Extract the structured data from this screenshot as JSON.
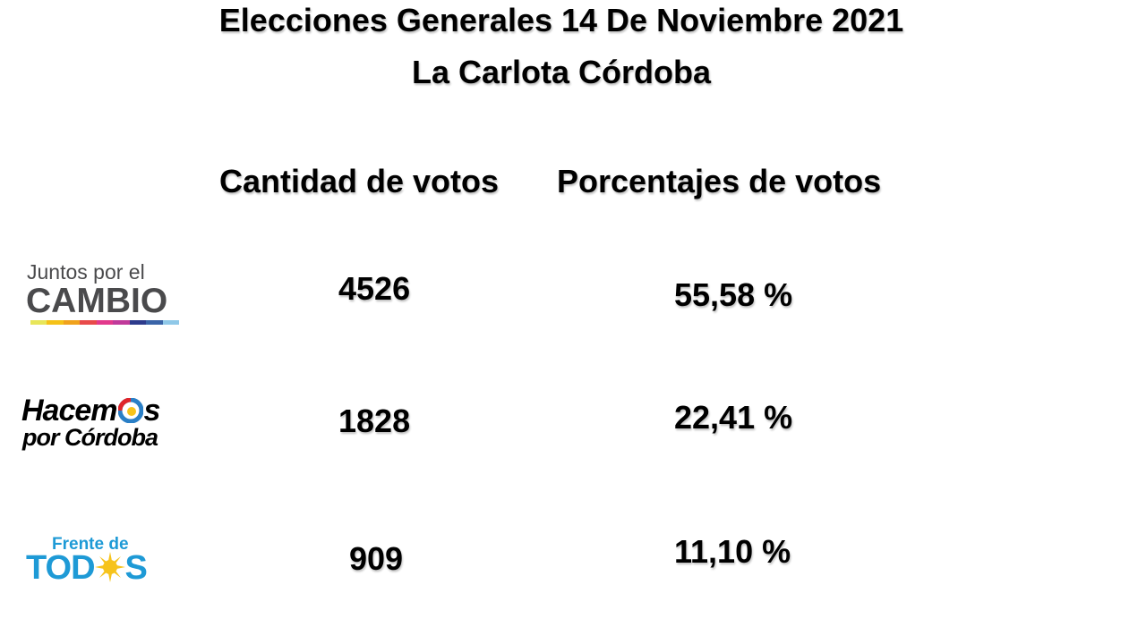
{
  "title": {
    "line1": "Elecciones Generales 14 De Noviembre 2021",
    "line2": "La Carlota Córdoba"
  },
  "headers": {
    "votes": "Cantidad de votos",
    "percent": "Porcentajes de votos"
  },
  "rows": [
    {
      "party_logo_text": [
        "Juntos por el",
        "CAMBIO"
      ],
      "votes": "4526",
      "percent": "55,58 %"
    },
    {
      "party_logo_text": [
        "Hacem",
        "s",
        "por Córdoba"
      ],
      "votes": "1828",
      "percent": "22,41 %"
    },
    {
      "party_logo_text": [
        "Frente de",
        "TOD",
        "S"
      ],
      "votes": "909",
      "percent": "11,10 %"
    }
  ],
  "colors": {
    "jxc_gray": "#4a4a4c",
    "jxc_stripe": [
      "#e8e65a",
      "#f5c218",
      "#f0a21c",
      "#e84a4a",
      "#e2398c",
      "#c03a9a",
      "#2d3b8c",
      "#3a64a8",
      "#8fc8e8"
    ],
    "todos_blue": "#1e9ad6",
    "todos_sun": "#f6c31b"
  }
}
